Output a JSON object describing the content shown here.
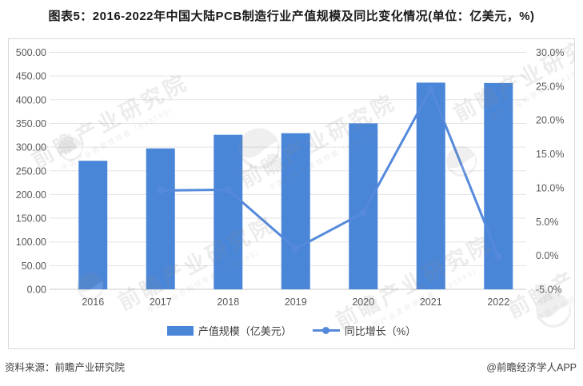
{
  "title": "图表5：2016-2022年中国大陆PCB制造行业产值规模及同比变化情况(单位：亿美元，%)",
  "chart_data": {
    "type": "bar+line combo",
    "categories": [
      "2016",
      "2017",
      "2018",
      "2019",
      "2020",
      "2021",
      "2022"
    ],
    "series": [
      {
        "name": "产值规模（亿美元）",
        "type": "bar",
        "axis": "left",
        "color": "#4A86D8",
        "values": [
          271.2,
          297.3,
          326.0,
          329.4,
          350.1,
          436.1,
          435.3
        ]
      },
      {
        "name": "同比增长（%）",
        "type": "line",
        "axis": "right",
        "color": "#5589DB",
        "values": [
          null,
          9.6,
          9.7,
          1.0,
          6.3,
          24.6,
          -0.2
        ]
      }
    ],
    "left_axis": {
      "min": 0,
      "max": 500,
      "tick_values": [
        500,
        450,
        400,
        350,
        300,
        250,
        200,
        150,
        100,
        50,
        0
      ],
      "tick_labels": [
        "500.00",
        "450.00",
        "400.00",
        "350.00",
        "300.00",
        "250.00",
        "200.00",
        "150.00",
        "100.00",
        "50.00",
        "0.00"
      ]
    },
    "right_axis": {
      "min": -5,
      "max": 30,
      "tick_values": [
        30,
        25,
        20,
        15,
        10,
        5,
        0,
        -5
      ],
      "tick_labels": [
        "30.0%",
        "25.0%",
        "20.0%",
        "15.0%",
        "10.0%",
        "5.0%",
        "0.0%",
        "-5.0%"
      ]
    },
    "grid": "horizontal",
    "legend_position": "bottom"
  },
  "legend": {
    "items": [
      {
        "label": "产值规模（亿美元）",
        "swatch": "bar",
        "color": "#4A86D8"
      },
      {
        "label": "同比增长（%）",
        "swatch": "line-dot",
        "color": "#5589DB"
      }
    ]
  },
  "footer": {
    "source": "资料来源：前瞻产业研究院",
    "credit": "@前瞻经济学人APP"
  },
  "watermark": {
    "text": "前瞻产业研究院",
    "subtext": "中国产业咨询领导者（839599）"
  },
  "colors": {
    "bar": "#4A86D8",
    "line": "#5589DB",
    "grid": "#E3E3E3",
    "axis_line": "#C9C9C9",
    "tick_text": "#595959",
    "title_text": "#1A1A1A",
    "footer_text": "#404040",
    "panel_border": "#D9D9D9",
    "watermark": "#8C8C8C"
  }
}
